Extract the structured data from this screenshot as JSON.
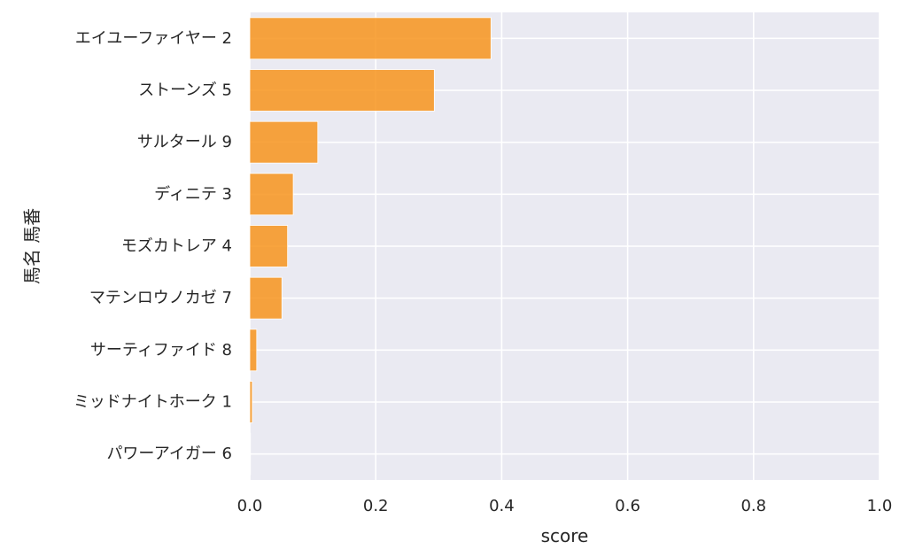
{
  "chart_data": {
    "type": "bar",
    "orientation": "horizontal",
    "categories": [
      "エイユーファイヤー 2",
      "ストーンズ 5",
      "サルタール 9",
      "ディニテ 3",
      "モズカトレア 4",
      "マテンロウノカゼ 7",
      "サーティファイド 8",
      "ミッドナイトホーク 1",
      "パワーアイガー 6"
    ],
    "values": [
      0.383,
      0.293,
      0.108,
      0.069,
      0.06,
      0.051,
      0.011,
      0.004,
      0.001
    ],
    "xlabel": "score",
    "ylabel": "馬名 馬番",
    "xlim": [
      0,
      1.0
    ],
    "xticks": [
      "0.0",
      "0.2",
      "0.4",
      "0.6",
      "0.8",
      "1.0"
    ],
    "grid": true,
    "colors": {
      "bar": "#f7941d",
      "background": "#eaeaf2",
      "grid": "#ffffff"
    }
  }
}
